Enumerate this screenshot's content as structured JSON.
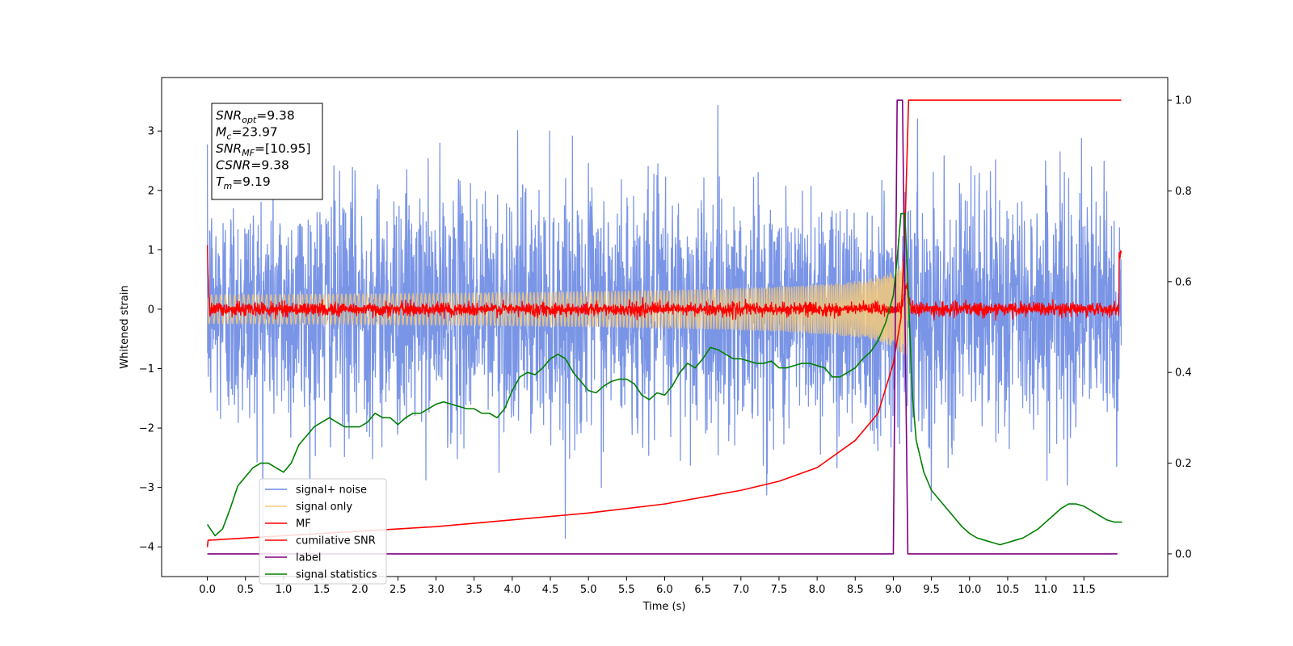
{
  "chart_data": {
    "type": "line",
    "xlabel": "Time (s)",
    "ylabel": "Whitened strain",
    "xlim": [
      -0.6,
      12.6
    ],
    "ylim_left": [
      -4.5,
      3.9
    ],
    "ylim_right": [
      -0.05,
      1.05
    ],
    "x_ticks": [
      "0.0",
      "0.5",
      "1.0",
      "1.5",
      "2.0",
      "2.5",
      "3.0",
      "3.5",
      "4.0",
      "4.5",
      "5.0",
      "5.5",
      "6.0",
      "6.5",
      "7.0",
      "7.5",
      "8.0",
      "8.5",
      "9.0",
      "9.5",
      "10.0",
      "10.5",
      "11.0",
      "11.5"
    ],
    "y_ticks_left": [
      "3",
      "2",
      "1",
      "0",
      "−1",
      "−2",
      "−3",
      "−4"
    ],
    "y_ticks_right": [
      "1.0",
      "0.8",
      "0.6",
      "0.4",
      "0.2",
      "0.0"
    ],
    "legend_position": "lower-left",
    "info_box": [
      {
        "base": "SNR",
        "sub": "opt",
        "value": "=9.38"
      },
      {
        "base": "M",
        "sub": "c",
        "value": "=23.97"
      },
      {
        "base": "SNR",
        "sub": "MF",
        "value": "=[10.95]"
      },
      {
        "base": "CSNR",
        "sub": "",
        "value": "=9.38"
      },
      {
        "base": "T",
        "sub": "m",
        "value": "=9.19"
      }
    ],
    "series": [
      {
        "name": "signal+ noise",
        "axis": "left",
        "color": "#6b89e3",
        "kind": "noise",
        "x_range": [
          0.0,
          11.99
        ],
        "amplitude_sigma": 1.0,
        "envelope_min_max": [
          -4.1,
          3.5
        ]
      },
      {
        "name": "signal only",
        "axis": "left",
        "color": "#f5c97a",
        "kind": "chirp",
        "x_range": [
          0.0,
          11.99
        ],
        "merger_time": 9.19,
        "peak_amplitude": 0.8
      },
      {
        "name": "MF",
        "axis": "left",
        "color": "#ff0000",
        "kind": "noise",
        "x_range": [
          0.0,
          11.99
        ],
        "points": [
          [
            0.0,
            1.0
          ],
          [
            0.02,
            0.15
          ],
          [
            9.1,
            0.6
          ],
          [
            9.19,
            0.9
          ],
          [
            9.3,
            0.05
          ],
          [
            11.99,
            0.95
          ]
        ]
      },
      {
        "name": "cumilative SNR",
        "axis": "right",
        "color": "#ff0000",
        "kind": "line",
        "points": [
          [
            0.0,
            0.015
          ],
          [
            0.01,
            0.03
          ],
          [
            1.0,
            0.04
          ],
          [
            2.0,
            0.05
          ],
          [
            3.0,
            0.06
          ],
          [
            4.0,
            0.075
          ],
          [
            5.0,
            0.09
          ],
          [
            6.0,
            0.11
          ],
          [
            7.0,
            0.14
          ],
          [
            7.5,
            0.16
          ],
          [
            8.0,
            0.19
          ],
          [
            8.5,
            0.25
          ],
          [
            8.8,
            0.31
          ],
          [
            9.0,
            0.42
          ],
          [
            9.1,
            0.52
          ],
          [
            9.15,
            0.7
          ],
          [
            9.2,
            1.0
          ],
          [
            11.99,
            1.0
          ]
        ]
      },
      {
        "name": "label",
        "axis": "right",
        "color": "#800080",
        "kind": "line",
        "points": [
          [
            0.0,
            0.0
          ],
          [
            9.0,
            0.0
          ],
          [
            9.05,
            1.0
          ],
          [
            9.12,
            1.0
          ],
          [
            9.19,
            0.0
          ],
          [
            11.94,
            0.0
          ]
        ]
      },
      {
        "name": "signal statistics",
        "axis": "right",
        "color": "#008000",
        "kind": "line",
        "points": [
          [
            0.0,
            0.065
          ],
          [
            0.1,
            0.04
          ],
          [
            0.2,
            0.055
          ],
          [
            0.3,
            0.1
          ],
          [
            0.4,
            0.15
          ],
          [
            0.5,
            0.17
          ],
          [
            0.6,
            0.19
          ],
          [
            0.7,
            0.2
          ],
          [
            0.8,
            0.2
          ],
          [
            0.9,
            0.19
          ],
          [
            1.0,
            0.18
          ],
          [
            1.1,
            0.2
          ],
          [
            1.2,
            0.24
          ],
          [
            1.3,
            0.26
          ],
          [
            1.4,
            0.28
          ],
          [
            1.5,
            0.29
          ],
          [
            1.6,
            0.3
          ],
          [
            1.7,
            0.29
          ],
          [
            1.8,
            0.28
          ],
          [
            1.9,
            0.28
          ],
          [
            2.0,
            0.28
          ],
          [
            2.1,
            0.29
          ],
          [
            2.2,
            0.31
          ],
          [
            2.3,
            0.3
          ],
          [
            2.4,
            0.3
          ],
          [
            2.5,
            0.285
          ],
          [
            2.6,
            0.3
          ],
          [
            2.7,
            0.31
          ],
          [
            2.8,
            0.31
          ],
          [
            2.9,
            0.32
          ],
          [
            3.0,
            0.33
          ],
          [
            3.1,
            0.335
          ],
          [
            3.2,
            0.33
          ],
          [
            3.3,
            0.325
          ],
          [
            3.4,
            0.32
          ],
          [
            3.5,
            0.32
          ],
          [
            3.6,
            0.31
          ],
          [
            3.7,
            0.31
          ],
          [
            3.8,
            0.3
          ],
          [
            3.9,
            0.32
          ],
          [
            4.0,
            0.36
          ],
          [
            4.1,
            0.39
          ],
          [
            4.2,
            0.4
          ],
          [
            4.3,
            0.395
          ],
          [
            4.4,
            0.41
          ],
          [
            4.5,
            0.43
          ],
          [
            4.6,
            0.44
          ],
          [
            4.7,
            0.43
          ],
          [
            4.8,
            0.4
          ],
          [
            4.9,
            0.38
          ],
          [
            5.0,
            0.36
          ],
          [
            5.1,
            0.355
          ],
          [
            5.2,
            0.37
          ],
          [
            5.3,
            0.38
          ],
          [
            5.4,
            0.385
          ],
          [
            5.5,
            0.385
          ],
          [
            5.6,
            0.375
          ],
          [
            5.7,
            0.35
          ],
          [
            5.8,
            0.34
          ],
          [
            5.9,
            0.355
          ],
          [
            6.0,
            0.35
          ],
          [
            6.1,
            0.37
          ],
          [
            6.2,
            0.4
          ],
          [
            6.3,
            0.42
          ],
          [
            6.4,
            0.41
          ],
          [
            6.5,
            0.43
          ],
          [
            6.6,
            0.455
          ],
          [
            6.7,
            0.45
          ],
          [
            6.8,
            0.44
          ],
          [
            6.9,
            0.43
          ],
          [
            7.0,
            0.43
          ],
          [
            7.1,
            0.425
          ],
          [
            7.2,
            0.42
          ],
          [
            7.3,
            0.42
          ],
          [
            7.4,
            0.425
          ],
          [
            7.5,
            0.41
          ],
          [
            7.6,
            0.41
          ],
          [
            7.7,
            0.415
          ],
          [
            7.8,
            0.42
          ],
          [
            7.9,
            0.42
          ],
          [
            8.0,
            0.415
          ],
          [
            8.1,
            0.41
          ],
          [
            8.2,
            0.39
          ],
          [
            8.3,
            0.39
          ],
          [
            8.4,
            0.4
          ],
          [
            8.5,
            0.41
          ],
          [
            8.6,
            0.43
          ],
          [
            8.7,
            0.445
          ],
          [
            8.8,
            0.47
          ],
          [
            8.9,
            0.51
          ],
          [
            9.0,
            0.57
          ],
          [
            9.05,
            0.65
          ],
          [
            9.1,
            0.75
          ],
          [
            9.15,
            0.75
          ],
          [
            9.19,
            0.6
          ],
          [
            9.25,
            0.35
          ],
          [
            9.3,
            0.25
          ],
          [
            9.4,
            0.18
          ],
          [
            9.5,
            0.14
          ],
          [
            9.6,
            0.12
          ],
          [
            9.7,
            0.1
          ],
          [
            9.8,
            0.08
          ],
          [
            9.9,
            0.06
          ],
          [
            10.0,
            0.045
          ],
          [
            10.1,
            0.035
          ],
          [
            10.2,
            0.03
          ],
          [
            10.3,
            0.025
          ],
          [
            10.4,
            0.02
          ],
          [
            10.5,
            0.025
          ],
          [
            10.6,
            0.03
          ],
          [
            10.7,
            0.035
          ],
          [
            10.8,
            0.045
          ],
          [
            10.9,
            0.055
          ],
          [
            11.0,
            0.07
          ],
          [
            11.1,
            0.085
          ],
          [
            11.2,
            0.1
          ],
          [
            11.3,
            0.11
          ],
          [
            11.4,
            0.11
          ],
          [
            11.5,
            0.105
          ],
          [
            11.6,
            0.095
          ],
          [
            11.7,
            0.085
          ],
          [
            11.8,
            0.075
          ],
          [
            11.9,
            0.07
          ],
          [
            12.0,
            0.07
          ]
        ]
      }
    ]
  }
}
